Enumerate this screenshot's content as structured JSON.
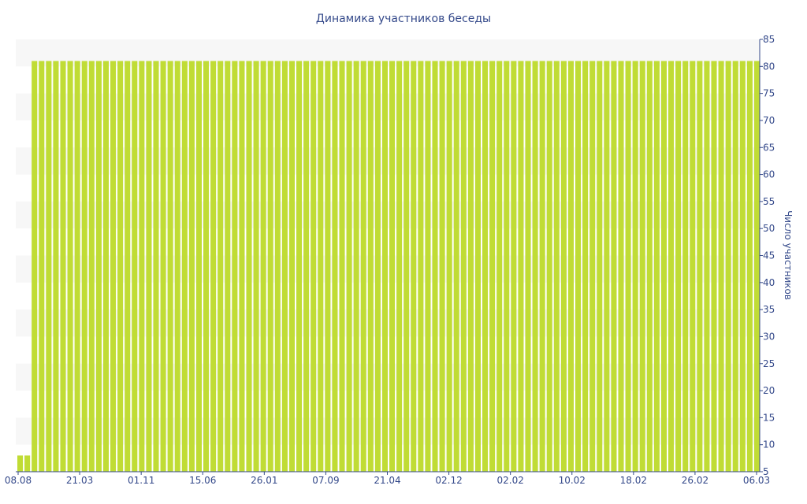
{
  "chart_data": {
    "type": "bar",
    "title": "Динамика участников беседы",
    "ylabel": "Число участников",
    "xlabel": "",
    "ylim": [
      5,
      85
    ],
    "y_ticks": [
      5,
      10,
      15,
      20,
      25,
      30,
      35,
      40,
      45,
      50,
      55,
      60,
      65,
      70,
      75,
      80,
      85
    ],
    "y_axis_side": "right",
    "x_tick_labels": [
      "08.08",
      "21.03",
      "01.11",
      "15.06",
      "26.01",
      "07.09",
      "21.04",
      "02.12",
      "02.02",
      "10.02",
      "18.02",
      "26.02",
      "06.03"
    ],
    "grid": "horizontal bands",
    "bar_color": "#c0dc35",
    "band_color": "#f7f7f7",
    "text_color": "#34498a",
    "series": [
      {
        "values": [
          8,
          8,
          81,
          81,
          81,
          81,
          81,
          81,
          81,
          81,
          81,
          81,
          81,
          81,
          81,
          81,
          81,
          81,
          81,
          81,
          81,
          81,
          81,
          81,
          81,
          81,
          81,
          81,
          81,
          81,
          81,
          81,
          81,
          81,
          81,
          81,
          81,
          81,
          81,
          81,
          81,
          81,
          81,
          81,
          81,
          81,
          81,
          81,
          81,
          81,
          81,
          81,
          81,
          81,
          81,
          81,
          81,
          81,
          81,
          81,
          81,
          81,
          81,
          81,
          81,
          81,
          81,
          81,
          81,
          81,
          81,
          81,
          81,
          81,
          81,
          81,
          81,
          81,
          81,
          81,
          81,
          81,
          81,
          81,
          81,
          81,
          81,
          81,
          81,
          81,
          81,
          81,
          81,
          81,
          81,
          81,
          81,
          81,
          81,
          81,
          81,
          81,
          81,
          81
        ]
      }
    ]
  }
}
